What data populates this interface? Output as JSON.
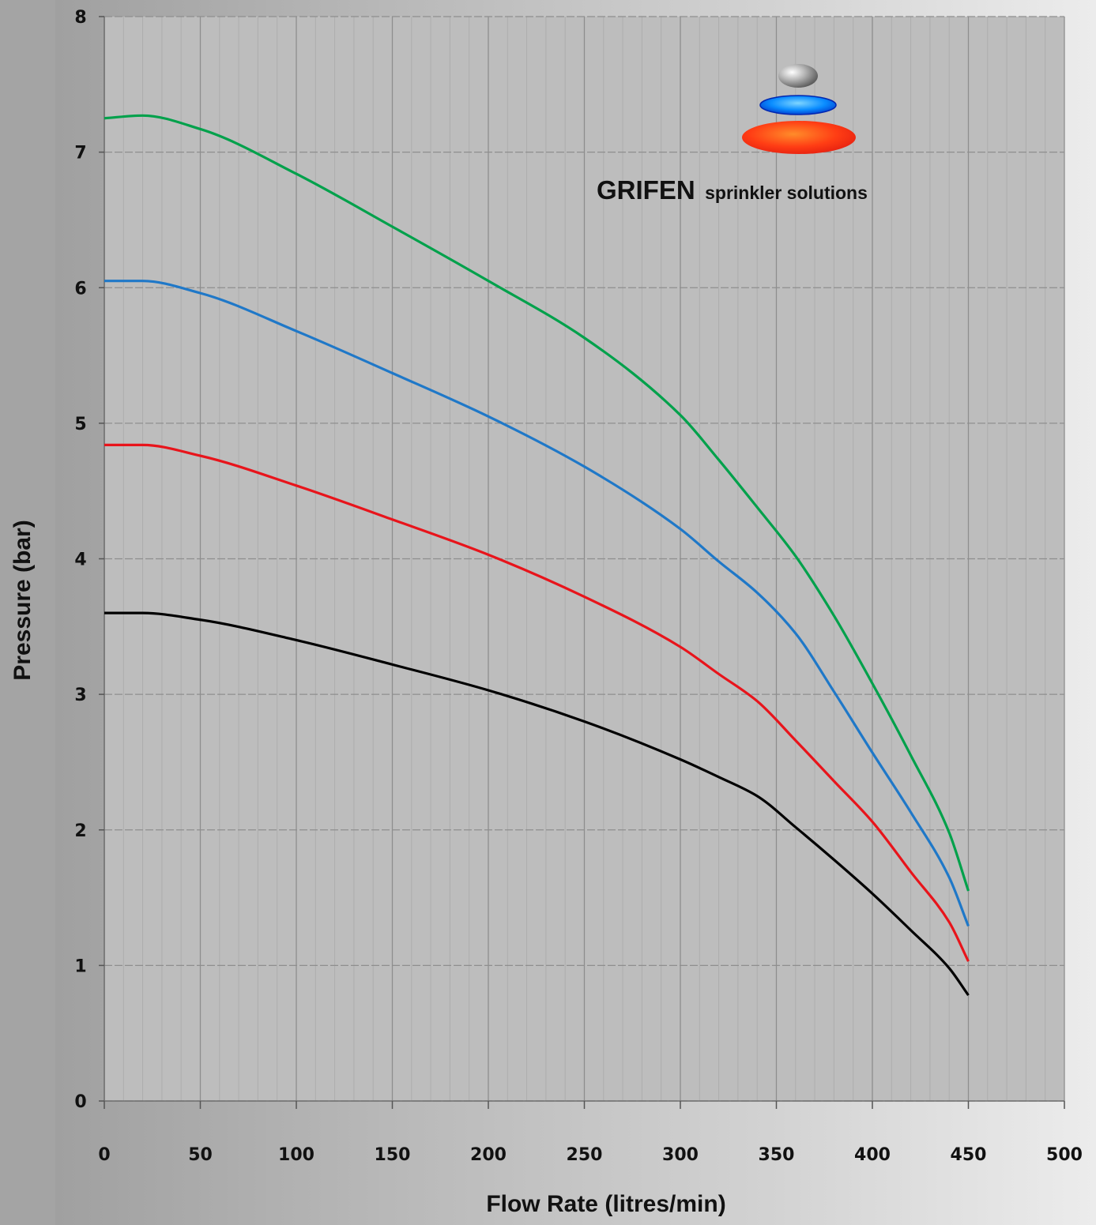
{
  "chart_data": {
    "type": "line",
    "title": "",
    "xlabel": "Flow Rate (litres/min)",
    "ylabel": "Pressure (bar)",
    "xlim": [
      0,
      500
    ],
    "ylim": [
      0,
      8
    ],
    "xticks": [
      0,
      50,
      100,
      150,
      200,
      250,
      300,
      350,
      400,
      450,
      500
    ],
    "yticks": [
      0,
      1,
      2,
      3,
      4,
      5,
      6,
      7,
      8
    ],
    "xtick_labels": [
      "0",
      "50",
      "100",
      "150",
      "200",
      "250",
      "300",
      "350",
      "400",
      "450",
      "500"
    ],
    "ytick_labels": [
      "0",
      "1",
      "2",
      "3",
      "4",
      "5",
      "6",
      "7",
      "8"
    ],
    "grid": true,
    "legend": "none",
    "x": [
      0,
      20,
      50,
      100,
      150,
      200,
      250,
      300,
      320,
      340,
      360,
      380,
      400,
      420,
      440,
      450
    ],
    "series": [
      {
        "color": "#00a14b",
        "values": [
          7.25,
          7.27,
          7.17,
          6.84,
          6.45,
          6.05,
          5.63,
          5.06,
          4.73,
          4.38,
          4.02,
          3.58,
          3.08,
          2.55,
          1.98,
          1.55
        ]
      },
      {
        "color": "#1f78c8",
        "values": [
          6.05,
          6.05,
          5.96,
          5.68,
          5.37,
          5.05,
          4.68,
          4.22,
          3.98,
          3.75,
          3.45,
          3.02,
          2.57,
          2.13,
          1.65,
          1.29
        ]
      },
      {
        "color": "#e8141b",
        "values": [
          4.84,
          4.84,
          4.76,
          4.54,
          4.29,
          4.03,
          3.72,
          3.35,
          3.15,
          2.95,
          2.66,
          2.36,
          2.06,
          1.69,
          1.32,
          1.03
        ]
      },
      {
        "color": "#000000",
        "values": [
          3.6,
          3.6,
          3.55,
          3.4,
          3.22,
          3.03,
          2.8,
          2.52,
          2.39,
          2.25,
          2.02,
          1.78,
          1.53,
          1.26,
          0.98,
          0.78
        ]
      }
    ]
  },
  "logo": {
    "brand": "GRIFEN",
    "tagline": "sprinkler solutions",
    "colors": {
      "top": "#a8a8a8",
      "middle": "#1a8cff",
      "bottom": "#ff3b1a"
    }
  },
  "colors": {
    "plot_background": "#bdbdbd",
    "major_grid": "#8e8e8e",
    "minor_grid": "#adadad"
  }
}
